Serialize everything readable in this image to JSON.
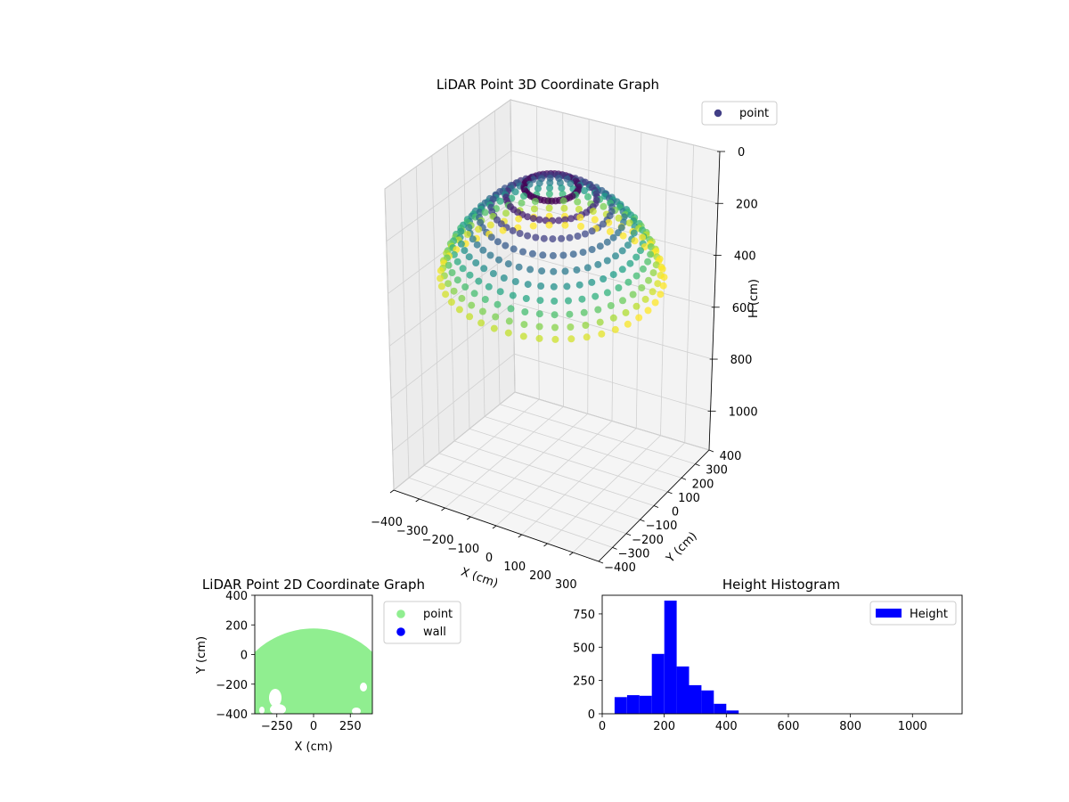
{
  "colors": {
    "point3d_legend": "#423f86",
    "point2d": "#90ee90",
    "wall": "#0000ff",
    "histogram": "#0000ff",
    "pane": "#f2f2f2",
    "grid": "#cccccc"
  },
  "chart_data": [
    {
      "type": "scatter",
      "projection": "3d",
      "title": "LiDAR Point 3D Coordinate Graph",
      "xlabel": "X (cm)",
      "ylabel": "Y (cm)",
      "zlabel": "H (cm)",
      "xlim": [
        -400,
        400
      ],
      "ylim": [
        -400,
        400
      ],
      "zlim": [
        1150,
        0
      ],
      "z_inverted": true,
      "x_ticks": [
        -400,
        -300,
        -200,
        -100,
        0,
        100,
        200,
        300
      ],
      "y_ticks": [
        -400,
        -300,
        -200,
        -100,
        0,
        100,
        200,
        300,
        400
      ],
      "z_ticks": [
        0,
        200,
        400,
        600,
        800,
        1000
      ],
      "x_tick_labels": [
        "−400",
        "−300",
        "−200",
        "−100",
        "0",
        "100",
        "200",
        "300"
      ],
      "y_tick_labels": [
        "−400",
        "−300",
        "−200",
        "−100",
        "0",
        "100",
        "200",
        "300",
        "400"
      ],
      "z_tick_labels": [
        "0",
        "200",
        "400",
        "600",
        "800",
        "1000"
      ],
      "colormap": "viridis",
      "legend": {
        "entries": [
          "point"
        ],
        "position": "top-right"
      },
      "grid": true,
      "points_description_only": false,
      "point_rings": {
        "azimuth_steps": 44,
        "rings": [
          {
            "h": 40,
            "r": 90
          },
          {
            "h": 80,
            "r": 150
          },
          {
            "h": 120,
            "r": 200
          },
          {
            "h": 160,
            "r": 240
          },
          {
            "h": 200,
            "r": 275
          },
          {
            "h": 240,
            "r": 305
          },
          {
            "h": 280,
            "r": 330
          },
          {
            "h": 320,
            "r": 350
          },
          {
            "h": 360,
            "r": 365
          },
          {
            "h": 400,
            "r": 375
          }
        ]
      }
    },
    {
      "type": "scatter",
      "title": "LiDAR Point 2D Coordinate Graph",
      "xlabel": "X (cm)",
      "ylabel": "Y (cm)",
      "xlim": [
        -400,
        400
      ],
      "ylim": [
        -400,
        400
      ],
      "x_ticks": [
        -250,
        0,
        250
      ],
      "x_tick_labels": [
        "−250",
        "0",
        "250"
      ],
      "y_ticks": [
        -400,
        -200,
        0,
        200,
        400
      ],
      "y_tick_labels": [
        "−400",
        "−200",
        "0",
        "200",
        "400"
      ],
      "series": [
        {
          "name": "point",
          "color": "#90ee90",
          "shape": "disk",
          "center": [
            0,
            -400
          ],
          "radius": 580,
          "clip_box": [
            -380,
            380,
            -400,
            400
          ]
        },
        {
          "name": "wall",
          "color": "#0000ff",
          "values": []
        }
      ],
      "legend": {
        "entries": [
          "point",
          "wall"
        ],
        "position": "outside-right"
      }
    },
    {
      "type": "bar",
      "subtype": "histogram",
      "title": "Height Histogram",
      "xlim": [
        0,
        1160
      ],
      "ylim": [
        0,
        890
      ],
      "x_ticks": [
        0,
        200,
        400,
        600,
        800,
        1000
      ],
      "y_ticks": [
        0,
        250,
        500,
        750
      ],
      "bin_width": 40,
      "bins": [
        {
          "start": 40,
          "count": 125
        },
        {
          "start": 80,
          "count": 140
        },
        {
          "start": 120,
          "count": 135
        },
        {
          "start": 160,
          "count": 450
        },
        {
          "start": 200,
          "count": 850
        },
        {
          "start": 240,
          "count": 355
        },
        {
          "start": 280,
          "count": 215
        },
        {
          "start": 320,
          "count": 175
        },
        {
          "start": 360,
          "count": 75
        },
        {
          "start": 400,
          "count": 25
        }
      ],
      "series": [
        {
          "name": "Height"
        }
      ],
      "legend": {
        "entries": [
          "Height"
        ],
        "position": "top-right"
      }
    }
  ]
}
